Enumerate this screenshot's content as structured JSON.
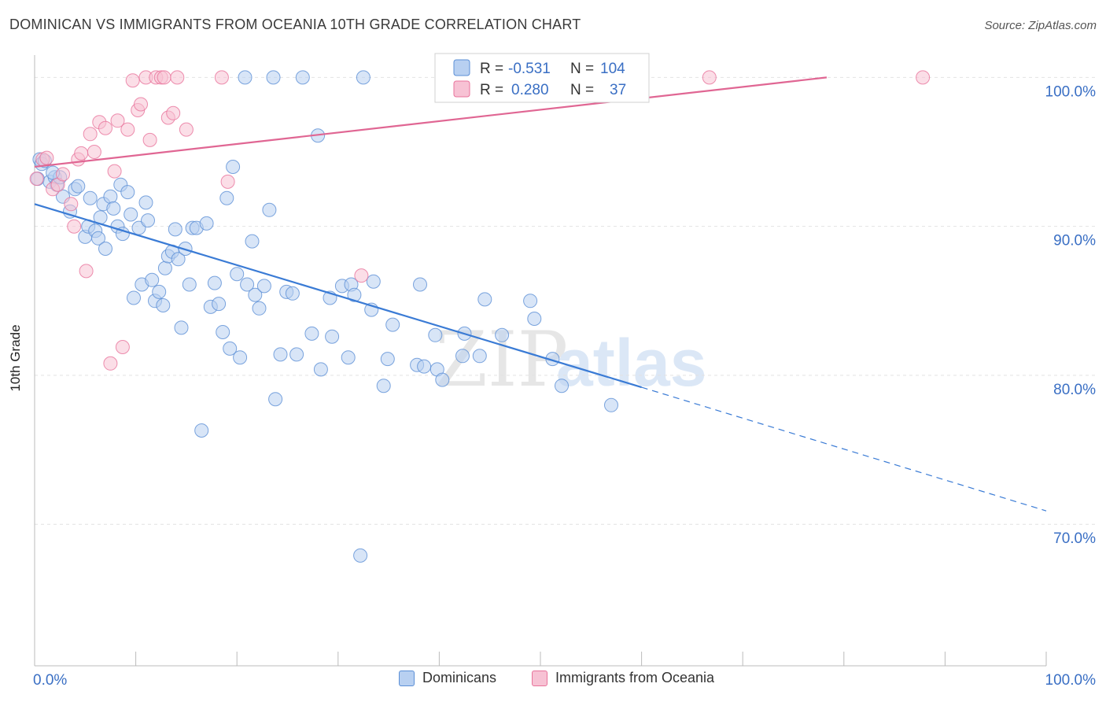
{
  "title": "DOMINICAN VS IMMIGRANTS FROM OCEANIA 10TH GRADE CORRELATION CHART",
  "source": "Source: ZipAtlas.com",
  "watermark": {
    "zip": "ZIP",
    "atlas": "atlas"
  },
  "chart_data": {
    "type": "scatter",
    "title": "DOMINICAN VS IMMIGRANTS FROM OCEANIA 10TH GRADE CORRELATION CHART",
    "xlabel": "",
    "ylabel": "10th Grade",
    "xlim": [
      0,
      100
    ],
    "ylim": [
      60.5,
      101.5
    ],
    "x_tick_labels": [
      {
        "value": 0,
        "label": "0.0%"
      },
      {
        "value": 100,
        "label": "100.0%"
      }
    ],
    "y_ticks": [
      {
        "value": 70,
        "label": "70.0%"
      },
      {
        "value": 80,
        "label": "80.0%"
      },
      {
        "value": 90,
        "label": "90.0%"
      },
      {
        "value": 100,
        "label": "100.0%"
      }
    ],
    "grid": true,
    "legend_position": "top-center",
    "series": [
      {
        "name": "Dominicans",
        "color": "#5b8fd6",
        "fill": "#b8d0f1",
        "R": "-0.531",
        "N": "104",
        "trend": {
          "x0": 0,
          "y0": 91.5,
          "x1": 60,
          "y1": 79.2,
          "dash_x1": 100,
          "dash_y1": 70.9
        },
        "points": [
          [
            0.3,
            93.2
          ],
          [
            0.5,
            94.5
          ],
          [
            0.7,
            94.2
          ],
          [
            1.0,
            94.4
          ],
          [
            1.5,
            93.0
          ],
          [
            2.0,
            93.3
          ],
          [
            2.2,
            92.8
          ],
          [
            2.5,
            93.3
          ],
          [
            2.8,
            92.0
          ],
          [
            3.5,
            91.0
          ],
          [
            4.0,
            92.5
          ],
          [
            4.3,
            92.7
          ],
          [
            5.0,
            89.3
          ],
          [
            5.3,
            90.0
          ],
          [
            5.5,
            91.9
          ],
          [
            6.0,
            89.7
          ],
          [
            6.3,
            89.2
          ],
          [
            6.8,
            91.5
          ],
          [
            7.0,
            88.5
          ],
          [
            7.5,
            92.0
          ],
          [
            7.8,
            91.2
          ],
          [
            8.2,
            90.0
          ],
          [
            8.5,
            92.8
          ],
          [
            8.7,
            89.5
          ],
          [
            9.2,
            92.3
          ],
          [
            9.5,
            90.8
          ],
          [
            9.8,
            85.2
          ],
          [
            10.3,
            89.9
          ],
          [
            10.6,
            86.1
          ],
          [
            11.0,
            91.6
          ],
          [
            11.2,
            90.4
          ],
          [
            11.6,
            86.4
          ],
          [
            11.9,
            85.0
          ],
          [
            12.3,
            85.6
          ],
          [
            12.7,
            84.7
          ],
          [
            12.9,
            87.2
          ],
          [
            13.2,
            88.0
          ],
          [
            13.6,
            88.3
          ],
          [
            13.9,
            89.8
          ],
          [
            14.2,
            87.8
          ],
          [
            14.5,
            83.2
          ],
          [
            14.9,
            88.5
          ],
          [
            15.3,
            86.1
          ],
          [
            15.6,
            89.9
          ],
          [
            16.0,
            89.9
          ],
          [
            16.5,
            76.3
          ],
          [
            17.0,
            90.2
          ],
          [
            17.4,
            84.6
          ],
          [
            17.8,
            86.2
          ],
          [
            18.2,
            84.8
          ],
          [
            18.6,
            82.9
          ],
          [
            19.0,
            91.9
          ],
          [
            19.3,
            81.8
          ],
          [
            19.6,
            94.0
          ],
          [
            20.0,
            86.8
          ],
          [
            20.3,
            81.2
          ],
          [
            20.8,
            100.0
          ],
          [
            21.0,
            86.1
          ],
          [
            21.5,
            89.0
          ],
          [
            21.8,
            85.4
          ],
          [
            22.2,
            84.5
          ],
          [
            22.7,
            86.0
          ],
          [
            23.2,
            91.1
          ],
          [
            23.6,
            100.0
          ],
          [
            23.8,
            78.4
          ],
          [
            24.3,
            81.4
          ],
          [
            24.9,
            85.6
          ],
          [
            25.5,
            85.5
          ],
          [
            25.9,
            81.4
          ],
          [
            26.5,
            100.0
          ],
          [
            27.4,
            82.8
          ],
          [
            28.0,
            96.1
          ],
          [
            28.3,
            80.4
          ],
          [
            29.2,
            85.2
          ],
          [
            29.4,
            82.6
          ],
          [
            30.4,
            86.0
          ],
          [
            31.0,
            81.2
          ],
          [
            31.3,
            86.1
          ],
          [
            31.6,
            85.4
          ],
          [
            32.2,
            67.9
          ],
          [
            32.5,
            100.0
          ],
          [
            33.3,
            84.4
          ],
          [
            33.5,
            86.3
          ],
          [
            34.5,
            79.3
          ],
          [
            34.9,
            81.1
          ],
          [
            35.4,
            83.4
          ],
          [
            37.8,
            80.7
          ],
          [
            38.1,
            86.1
          ],
          [
            38.5,
            80.6
          ],
          [
            39.6,
            82.7
          ],
          [
            39.8,
            80.4
          ],
          [
            40.3,
            79.7
          ],
          [
            42.3,
            81.3
          ],
          [
            42.5,
            82.8
          ],
          [
            44.0,
            81.3
          ],
          [
            44.5,
            85.1
          ],
          [
            46.2,
            82.7
          ],
          [
            49.0,
            85.0
          ],
          [
            49.4,
            83.8
          ],
          [
            51.2,
            81.1
          ],
          [
            52.1,
            79.3
          ],
          [
            57.0,
            78.0
          ],
          [
            1.8,
            93.6
          ],
          [
            6.5,
            90.6
          ]
        ]
      },
      {
        "name": "Immigrants from Oceania",
        "color": "#e8739b",
        "fill": "#f7c2d4",
        "R": "0.280",
        "N": "37",
        "trend": {
          "x0": 0,
          "y0": 94.0,
          "x1": 78.3,
          "y1": 100.0
        },
        "points": [
          [
            0.2,
            93.2
          ],
          [
            0.8,
            94.5
          ],
          [
            1.2,
            94.6
          ],
          [
            1.8,
            92.5
          ],
          [
            2.3,
            92.8
          ],
          [
            2.8,
            93.5
          ],
          [
            3.6,
            91.5
          ],
          [
            3.9,
            90.0
          ],
          [
            4.3,
            94.5
          ],
          [
            4.6,
            94.9
          ],
          [
            5.1,
            87.0
          ],
          [
            5.5,
            96.2
          ],
          [
            5.9,
            95.0
          ],
          [
            6.4,
            97.0
          ],
          [
            7.0,
            96.6
          ],
          [
            7.5,
            80.8
          ],
          [
            7.9,
            93.7
          ],
          [
            8.2,
            97.1
          ],
          [
            8.7,
            81.9
          ],
          [
            9.2,
            96.5
          ],
          [
            9.7,
            99.8
          ],
          [
            10.2,
            97.8
          ],
          [
            10.5,
            98.2
          ],
          [
            11.0,
            100.0
          ],
          [
            11.4,
            95.8
          ],
          [
            12.0,
            100.0
          ],
          [
            12.5,
            100.0
          ],
          [
            12.8,
            100.0
          ],
          [
            13.2,
            97.3
          ],
          [
            13.7,
            97.6
          ],
          [
            14.1,
            100.0
          ],
          [
            15.0,
            96.5
          ],
          [
            18.5,
            100.0
          ],
          [
            19.1,
            93.0
          ],
          [
            32.3,
            86.7
          ],
          [
            66.7,
            100.0
          ],
          [
            87.8,
            100.0
          ]
        ]
      }
    ]
  },
  "legend": {
    "r_label": "R =",
    "n_label": "N =",
    "rows": [
      {
        "r_value": "-0.531",
        "n_value": "104"
      },
      {
        "r_value": "0.280",
        "n_value": "37"
      }
    ]
  },
  "bottom_legend": {
    "items": [
      {
        "label": "Dominicans"
      },
      {
        "label": "Immigrants from Oceania"
      }
    ]
  }
}
